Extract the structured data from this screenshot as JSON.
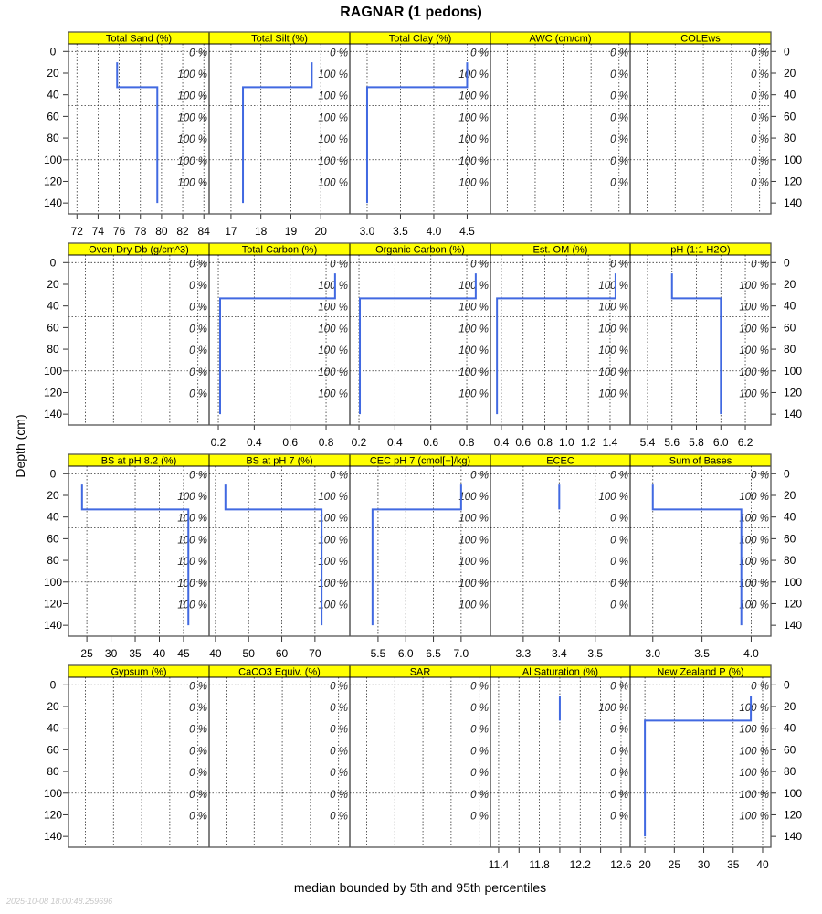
{
  "title": "RAGNAR (1 pedons)",
  "chart_data": {
    "type": "line",
    "title": "RAGNAR (1 pedons)",
    "xlabel": "median bounded by 5th and 95th percentiles",
    "ylabel": "Depth (cm)",
    "ylim": [
      150,
      -7
    ],
    "yticks": [
      0,
      20,
      40,
      60,
      80,
      100,
      120,
      140
    ],
    "hgrid": [
      0,
      50,
      100
    ],
    "timestamp": "2025-10-08 18:00:48.259696",
    "line_color": "#4169E1",
    "strip_color": "#FFFF00",
    "panels": [
      {
        "title": "Total Sand (%)",
        "xlim": [
          71.2,
          84.5
        ],
        "ticks": [
          72,
          74,
          76,
          78,
          80,
          82,
          84
        ],
        "labels": [
          "72",
          "74",
          "76",
          "78",
          "80",
          "82",
          "84"
        ],
        "pct": [
          "0 %",
          "100 %",
          "100 %",
          "100 %",
          "100 %",
          "100 %",
          "100 %"
        ],
        "profile": [
          {
            "top": 10,
            "bottom": 33,
            "value": 75.8
          },
          {
            "top": 33,
            "bottom": 140,
            "value": 79.6
          }
        ]
      },
      {
        "title": "Total Silt (%)",
        "xlim": [
          16.27,
          20.97
        ],
        "ticks": [
          17,
          18,
          19,
          20
        ],
        "labels": [
          "17",
          "18",
          "19",
          "20"
        ],
        "pct": [
          "0 %",
          "100 %",
          "100 %",
          "100 %",
          "100 %",
          "100 %",
          "100 %"
        ],
        "profile": [
          {
            "top": 10,
            "bottom": 33,
            "value": 19.7
          },
          {
            "top": 33,
            "bottom": 140,
            "value": 17.4
          }
        ]
      },
      {
        "title": "Total Clay (%)",
        "xlim": [
          2.74,
          4.85
        ],
        "ticks": [
          3.0,
          3.5,
          4.0,
          4.5
        ],
        "labels": [
          "3.0",
          "3.5",
          "4.0",
          "4.5"
        ],
        "pct": [
          "0 %",
          "100 %",
          "100 %",
          "100 %",
          "100 %",
          "100 %",
          "100 %"
        ],
        "profile": [
          {
            "top": 10,
            "bottom": 33,
            "value": 4.5
          },
          {
            "top": 33,
            "bottom": 140,
            "value": 3.0
          }
        ]
      },
      {
        "title": "AWC (cm/cm)",
        "xlim": [
          0,
          1
        ],
        "ticks": [],
        "labels": [],
        "pct": [
          "0 %",
          "0 %",
          "0 %",
          "0 %",
          "0 %",
          "0 %",
          "0 %"
        ],
        "profile": []
      },
      {
        "title": "COLEws",
        "xlim": [
          0,
          1
        ],
        "ticks": [],
        "labels": [],
        "pct": [
          "0 %",
          "0 %",
          "0 %",
          "0 %",
          "0 %",
          "0 %",
          "0 %"
        ],
        "profile": []
      },
      {
        "title": "Oven-Dry Db (g/cm^3)",
        "xlim": [
          0,
          1
        ],
        "ticks": [],
        "labels": [],
        "pct": [
          "0 %",
          "0 %",
          "0 %",
          "0 %",
          "0 %",
          "0 %",
          "0 %"
        ],
        "profile": []
      },
      {
        "title": "Total Carbon (%)",
        "xlim": [
          0.149,
          0.932
        ],
        "ticks": [
          0.2,
          0.4,
          0.6,
          0.8
        ],
        "labels": [
          "0.2",
          "0.4",
          "0.6",
          "0.8"
        ],
        "pct": [
          "0 %",
          "100 %",
          "100 %",
          "100 %",
          "100 %",
          "100 %",
          "100 %"
        ],
        "profile": [
          {
            "top": 10,
            "bottom": 33,
            "value": 0.85
          },
          {
            "top": 33,
            "bottom": 140,
            "value": 0.21
          }
        ]
      },
      {
        "title": "Organic Carbon (%)",
        "xlim": [
          0.149,
          0.932
        ],
        "ticks": [
          0.2,
          0.4,
          0.6,
          0.8
        ],
        "labels": [
          "0.2",
          "0.4",
          "0.6",
          "0.8"
        ],
        "pct": [
          "0 %",
          "100 %",
          "100 %",
          "100 %",
          "100 %",
          "100 %",
          "100 %"
        ],
        "profile": [
          {
            "top": 10,
            "bottom": 33,
            "value": 0.85
          },
          {
            "top": 33,
            "bottom": 140,
            "value": 0.205
          }
        ]
      },
      {
        "title": "Est. OM (%)",
        "xlim": [
          0.3,
          1.585
        ],
        "ticks": [
          0.4,
          0.6,
          0.8,
          1.0,
          1.2,
          1.4
        ],
        "labels": [
          "0.4",
          "0.6",
          "0.8",
          "1.0",
          "1.2",
          "1.4"
        ],
        "pct": [
          "0 %",
          "100 %",
          "100 %",
          "100 %",
          "100 %",
          "100 %",
          "100 %"
        ],
        "profile": [
          {
            "top": 10,
            "bottom": 33,
            "value": 1.45
          },
          {
            "top": 33,
            "bottom": 140,
            "value": 0.36
          }
        ]
      },
      {
        "title": "pH (1:1 H2O)",
        "xlim": [
          5.258,
          6.409
        ],
        "ticks": [
          5.4,
          5.6,
          5.8,
          6.0,
          6.2
        ],
        "labels": [
          "5.4",
          "5.6",
          "5.8",
          "6.0",
          "6.2"
        ],
        "pct": [
          "0 %",
          "100 %",
          "100 %",
          "100 %",
          "100 %",
          "100 %",
          "100 %"
        ],
        "profile": [
          {
            "top": 10,
            "bottom": 33,
            "value": 5.6
          },
          {
            "top": 33,
            "bottom": 140,
            "value": 6.0
          }
        ]
      },
      {
        "title": "BS at pH 8.2 (%)",
        "xlim": [
          21.2,
          50.3
        ],
        "ticks": [
          25,
          30,
          35,
          40,
          45
        ],
        "labels": [
          "25",
          "30",
          "35",
          "40",
          "45"
        ],
        "pct": [
          "0 %",
          "100 %",
          "100 %",
          "100 %",
          "100 %",
          "100 %",
          "100 %"
        ],
        "profile": [
          {
            "top": 10,
            "bottom": 33,
            "value": 24
          },
          {
            "top": 33,
            "bottom": 140,
            "value": 46
          }
        ]
      },
      {
        "title": "BS at pH 7 (%)",
        "xlim": [
          38.1,
          80.5
        ],
        "ticks": [
          40,
          50,
          60,
          70
        ],
        "labels": [
          "40",
          "50",
          "60",
          "70"
        ],
        "pct": [
          "0 %",
          "100 %",
          "100 %",
          "100 %",
          "100 %",
          "100 %",
          "100 %"
        ],
        "profile": [
          {
            "top": 10,
            "bottom": 33,
            "value": 43
          },
          {
            "top": 33,
            "bottom": 140,
            "value": 72
          }
        ]
      },
      {
        "title": "CEC pH 7 (cmol[+]/kg)",
        "xlim": [
          4.99,
          7.53
        ],
        "ticks": [
          5.5,
          6.0,
          6.5,
          7.0
        ],
        "labels": [
          "5.5",
          "6.0",
          "6.5",
          "7.0"
        ],
        "pct": [
          "0 %",
          "100 %",
          "100 %",
          "100 %",
          "100 %",
          "100 %",
          "100 %"
        ],
        "profile": [
          {
            "top": 10,
            "bottom": 33,
            "value": 7.0
          },
          {
            "top": 33,
            "bottom": 140,
            "value": 5.4
          }
        ]
      },
      {
        "title": "ECEC",
        "xlim": [
          3.209,
          3.597
        ],
        "ticks": [
          3.3,
          3.4,
          3.5
        ],
        "labels": [
          "3.3",
          "3.4",
          "3.5"
        ],
        "pct": [
          "0 %",
          "100 %",
          "0 %",
          "0 %",
          "0 %",
          "0 %",
          "0 %"
        ],
        "profile": [
          {
            "top": 10,
            "bottom": 33,
            "value": 3.4
          }
        ]
      },
      {
        "title": "Sum of Bases",
        "xlim": [
          2.77,
          4.2
        ],
        "ticks": [
          3.0,
          3.5,
          4.0
        ],
        "labels": [
          "3.0",
          "3.5",
          "4.0"
        ],
        "pct": [
          "0 %",
          "100 %",
          "100 %",
          "100 %",
          "100 %",
          "100 %",
          "100 %"
        ],
        "profile": [
          {
            "top": 10,
            "bottom": 33,
            "value": 3.0
          },
          {
            "top": 33,
            "bottom": 140,
            "value": 3.9
          }
        ]
      },
      {
        "title": "Gypsum (%)",
        "xlim": [
          0,
          1
        ],
        "ticks": [],
        "labels": [],
        "pct": [
          "0 %",
          "0 %",
          "0 %",
          "0 %",
          "0 %",
          "0 %",
          "0 %"
        ],
        "profile": []
      },
      {
        "title": "CaCO3 Equiv. (%)",
        "xlim": [
          0,
          1
        ],
        "ticks": [],
        "labels": [],
        "pct": [
          "0 %",
          "0 %",
          "0 %",
          "0 %",
          "0 %",
          "0 %",
          "0 %"
        ],
        "profile": []
      },
      {
        "title": "SAR",
        "xlim": [
          0,
          1
        ],
        "ticks": [],
        "labels": [],
        "pct": [
          "0 %",
          "0 %",
          "0 %",
          "0 %",
          "0 %",
          "0 %",
          "0 %"
        ],
        "profile": []
      },
      {
        "title": "Al Saturation (%)",
        "xlim": [
          11.32,
          12.69
        ],
        "ticks": [
          11.4,
          11.6,
          11.8,
          12.0,
          12.2,
          12.4,
          12.6
        ],
        "labels": [
          "11.4",
          "",
          "11.8",
          "",
          "12.2",
          "",
          "12.6"
        ],
        "pct": [
          "0 %",
          "100 %",
          "0 %",
          "0 %",
          "0 %",
          "0 %",
          "0 %"
        ],
        "profile": [
          {
            "top": 10,
            "bottom": 33,
            "value": 12.0
          }
        ]
      },
      {
        "title": "New Zealand P (%)",
        "xlim": [
          17.5,
          41.4
        ],
        "ticks": [
          20,
          25,
          30,
          35,
          40
        ],
        "labels": [
          "20",
          "25",
          "30",
          "35",
          "40"
        ],
        "pct": [
          "0 %",
          "100 %",
          "100 %",
          "100 %",
          "100 %",
          "100 %",
          "100 %"
        ],
        "profile": [
          {
            "top": 10,
            "bottom": 33,
            "value": 38
          },
          {
            "top": 33,
            "bottom": 140,
            "value": 20
          }
        ]
      }
    ]
  }
}
